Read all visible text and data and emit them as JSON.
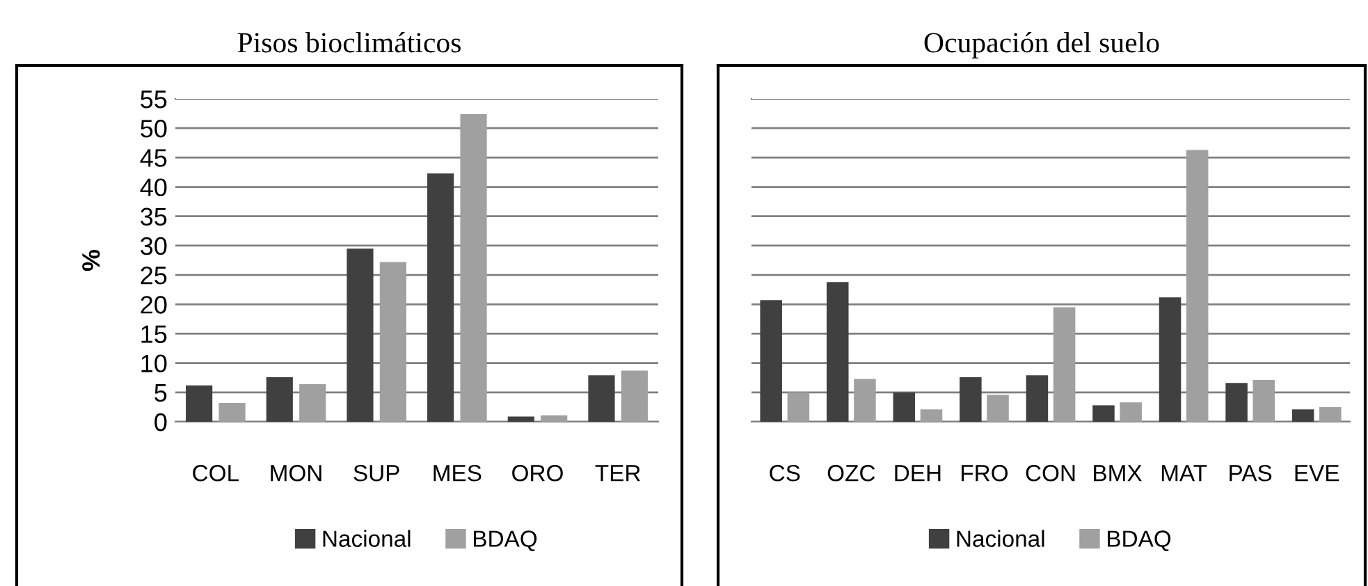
{
  "chart_data": [
    {
      "type": "bar",
      "title": "Pisos bioclimáticos",
      "ylabel": "%",
      "categories": [
        "COL",
        "MON",
        "SUP",
        "MES",
        "ORO",
        "TER"
      ],
      "series": [
        {
          "name": "Nacional",
          "color": "#404040",
          "values": [
            6.2,
            7.6,
            29.5,
            42.3,
            0.9,
            7.9
          ]
        },
        {
          "name": "BDAQ",
          "color": "#a0a0a0",
          "values": [
            3.2,
            6.4,
            27.2,
            52.4,
            1.1,
            8.7
          ]
        }
      ],
      "ylim": [
        0,
        55
      ],
      "yticks": [
        0,
        5,
        10,
        15,
        20,
        25,
        30,
        35,
        40,
        45,
        50,
        55
      ],
      "grid": "y",
      "legend": "bottom"
    },
    {
      "type": "bar",
      "title": "Ocupación del suelo",
      "categories": [
        "CS",
        "OZC",
        "DEH",
        "FRO",
        "CON",
        "BMX",
        "MAT",
        "PAS",
        "EVE"
      ],
      "series": [
        {
          "name": "Nacional",
          "color": "#404040",
          "values": [
            20.7,
            23.8,
            5.0,
            7.6,
            7.9,
            2.8,
            21.2,
            6.6,
            2.1
          ]
        },
        {
          "name": "BDAQ",
          "color": "#a0a0a0",
          "values": [
            5.0,
            7.3,
            2.1,
            4.6,
            19.5,
            3.3,
            46.3,
            7.1,
            2.5
          ]
        }
      ],
      "ylim": [
        0,
        55
      ],
      "yticks": [
        0,
        5,
        10,
        15,
        20,
        25,
        30,
        35,
        40,
        45,
        50,
        55
      ],
      "tick_labels": "x",
      "grid": "y",
      "legend": "bottom"
    }
  ]
}
